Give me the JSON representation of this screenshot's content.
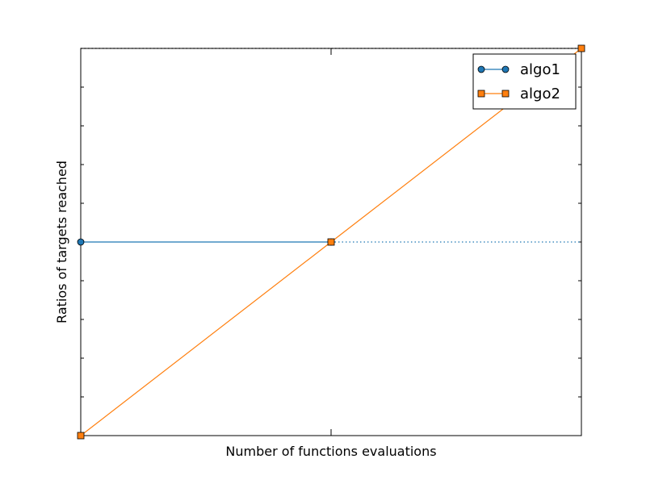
{
  "chart_data": {
    "type": "line",
    "title": "",
    "xlabel": "Number of functions evaluations",
    "ylabel": "Ratios of targets reached",
    "xlim": [
      0,
      2
    ],
    "ylim": [
      0,
      1
    ],
    "grid": false,
    "legend_position": "top-right",
    "y_minor_ticks": [
      0,
      0.1,
      0.2,
      0.3,
      0.4,
      0.5,
      0.6,
      0.7,
      0.8,
      0.9,
      1.0
    ],
    "x_ticks": [
      0,
      1,
      2
    ],
    "series": [
      {
        "name": "algo1",
        "color": "#1f77b4",
        "marker": "circle",
        "x": [
          0,
          1
        ],
        "y": [
          0.5,
          0.5
        ],
        "extension": {
          "style": "dotted",
          "to_x": 2,
          "y": 0.5
        }
      },
      {
        "name": "algo2",
        "color": "#ff7f0e",
        "marker": "square",
        "x": [
          0,
          1,
          2
        ],
        "y": [
          0,
          0.5,
          1
        ],
        "extension": {
          "style": "dotted",
          "to_x": 2,
          "y": 1
        }
      }
    ]
  }
}
